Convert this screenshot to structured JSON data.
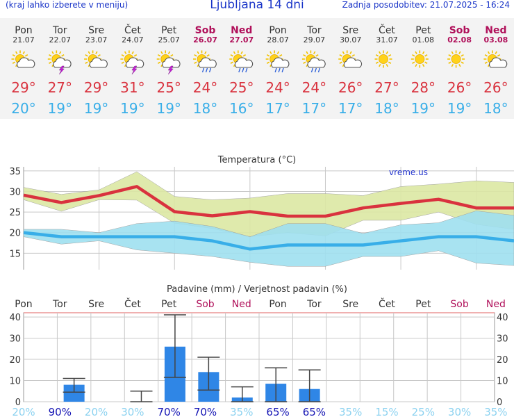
{
  "header": {
    "menu_hint": "(kraj lahko izberete v meniju)",
    "title": "Ljubljana 14 dni",
    "updated": "Zadnja posodobitev: 21.07.2025 - 16:24"
  },
  "colors": {
    "header_blue": "#1a35c8",
    "weekend": "#b0105a",
    "temp_max": "#d9323e",
    "temp_min": "#38aee8",
    "precip_bar": "#2f86e6",
    "max_band": "#dce8a4",
    "min_band": "#9fe0f0",
    "overlap_band": "#90d890",
    "prob_high": "#1414b4",
    "prob_low": "#8cd2f0"
  },
  "days": [
    {
      "name": "Pon",
      "date": "21.07",
      "icon": "sun-cloud-icon",
      "max": "29°",
      "min": "20°",
      "weekend": false
    },
    {
      "name": "Tor",
      "date": "22.07",
      "icon": "thunderstorm-icon",
      "max": "27°",
      "min": "19°",
      "weekend": false
    },
    {
      "name": "Sre",
      "date": "23.07",
      "icon": "sun-cloud-icon",
      "max": "29°",
      "min": "19°",
      "weekend": false
    },
    {
      "name": "Čet",
      "date": "24.07",
      "icon": "thunderstorm-icon",
      "max": "31°",
      "min": "19°",
      "weekend": false
    },
    {
      "name": "Pet",
      "date": "25.07",
      "icon": "thunderstorm-icon",
      "max": "25°",
      "min": "19°",
      "weekend": false
    },
    {
      "name": "Sob",
      "date": "26.07",
      "icon": "sun-cloud-rain-icon",
      "max": "24°",
      "min": "18°",
      "weekend": true
    },
    {
      "name": "Ned",
      "date": "27.07",
      "icon": "sun-cloud-rain-icon",
      "max": "25°",
      "min": "16°",
      "weekend": true
    },
    {
      "name": "Pon",
      "date": "28.07",
      "icon": "sun-cloud-rain-icon",
      "max": "24°",
      "min": "17°",
      "weekend": false
    },
    {
      "name": "Tor",
      "date": "29.07",
      "icon": "sun-cloud-rain-icon",
      "max": "24°",
      "min": "17°",
      "weekend": false
    },
    {
      "name": "Sre",
      "date": "30.07",
      "icon": "sun-cloud-icon",
      "max": "26°",
      "min": "17°",
      "weekend": false
    },
    {
      "name": "Čet",
      "date": "31.07",
      "icon": "sun-icon",
      "max": "27°",
      "min": "18°",
      "weekend": false
    },
    {
      "name": "Pet",
      "date": "01.08",
      "icon": "sun-icon",
      "max": "28°",
      "min": "19°",
      "weekend": false
    },
    {
      "name": "Sob",
      "date": "02.08",
      "icon": "sun-icon",
      "max": "26°",
      "min": "19°",
      "weekend": true
    },
    {
      "name": "Ned",
      "date": "03.08",
      "icon": "sun-cloud-icon",
      "max": "26°",
      "min": "18°",
      "weekend": true
    }
  ],
  "chart_data": [
    {
      "type": "line",
      "title": "Temperatura (°C)",
      "watermark": "vreme.us",
      "ylim": [
        11,
        36
      ],
      "yticks": [
        15,
        20,
        25,
        30,
        35
      ],
      "grid": true,
      "x": [
        "21.07",
        "22.07",
        "23.07",
        "24.07",
        "25.07",
        "26.07",
        "27.07",
        "28.07",
        "29.07",
        "30.07",
        "31.07",
        "01.08",
        "02.08",
        "03.08"
      ],
      "series": [
        {
          "role": "max",
          "values": [
            29.1,
            27.3,
            29.0,
            31.2,
            25.1,
            24.1,
            25.1,
            24.0,
            24.0,
            26.0,
            27.1,
            28.1,
            26.0,
            26.0
          ]
        },
        {
          "role": "max-high",
          "values": [
            31.0,
            29.3,
            30.4,
            34.8,
            28.8,
            28.0,
            28.4,
            29.5,
            29.5,
            29.0,
            31.2,
            31.8,
            32.6,
            32.2
          ]
        },
        {
          "role": "max-low",
          "values": [
            28.0,
            25.2,
            28.0,
            27.9,
            22.3,
            21.0,
            19.0,
            20.0,
            19.2,
            23.0,
            23.0,
            25.0,
            22.0,
            20.8
          ]
        },
        {
          "role": "min",
          "values": [
            20.0,
            19.0,
            19.0,
            19.0,
            19.0,
            18.0,
            16.0,
            17.0,
            17.0,
            17.0,
            18.0,
            19.0,
            19.0,
            18.0
          ]
        },
        {
          "role": "min-high",
          "values": [
            20.8,
            20.8,
            20.0,
            22.2,
            22.8,
            21.5,
            19.0,
            22.2,
            22.2,
            19.8,
            21.9,
            22.4,
            25.3,
            24.2
          ]
        },
        {
          "role": "min-low",
          "values": [
            19.0,
            17.2,
            18.0,
            15.8,
            15.0,
            14.2,
            12.8,
            11.8,
            11.8,
            14.2,
            14.2,
            15.6,
            12.6,
            12.0
          ]
        }
      ]
    },
    {
      "type": "bar",
      "title": "Padavine (mm) / Verjetnost padavin (%)",
      "ylim": [
        0,
        42
      ],
      "yticks": [
        0,
        10,
        20,
        30,
        40
      ],
      "grid": true,
      "categories": [
        "Pon",
        "Tor",
        "Sre",
        "Čet",
        "Pet",
        "Sob",
        "Ned",
        "Pon",
        "Tor",
        "Sre",
        "Čet",
        "Pet",
        "Sob",
        "Ned"
      ],
      "values": [
        0,
        8,
        0,
        0,
        26,
        14,
        2,
        8.5,
        6,
        0,
        0,
        0,
        0,
        0
      ],
      "err_low": [
        0,
        4.5,
        0,
        0,
        11.5,
        5.5,
        0,
        0,
        0,
        0,
        0,
        0,
        0,
        0
      ],
      "err_high": [
        0,
        11,
        0,
        5,
        41,
        21,
        7,
        16,
        15,
        0,
        0,
        0,
        0,
        0
      ],
      "probabilities": [
        "20%",
        "90%",
        "20%",
        "30%",
        "70%",
        "70%",
        "35%",
        "65%",
        "65%",
        "35%",
        "15%",
        "25%",
        "30%",
        "35%"
      ],
      "prob_level": [
        "low",
        "high",
        "low",
        "low",
        "high",
        "high",
        "low",
        "high",
        "high",
        "low",
        "low",
        "low",
        "low",
        "low"
      ]
    }
  ]
}
